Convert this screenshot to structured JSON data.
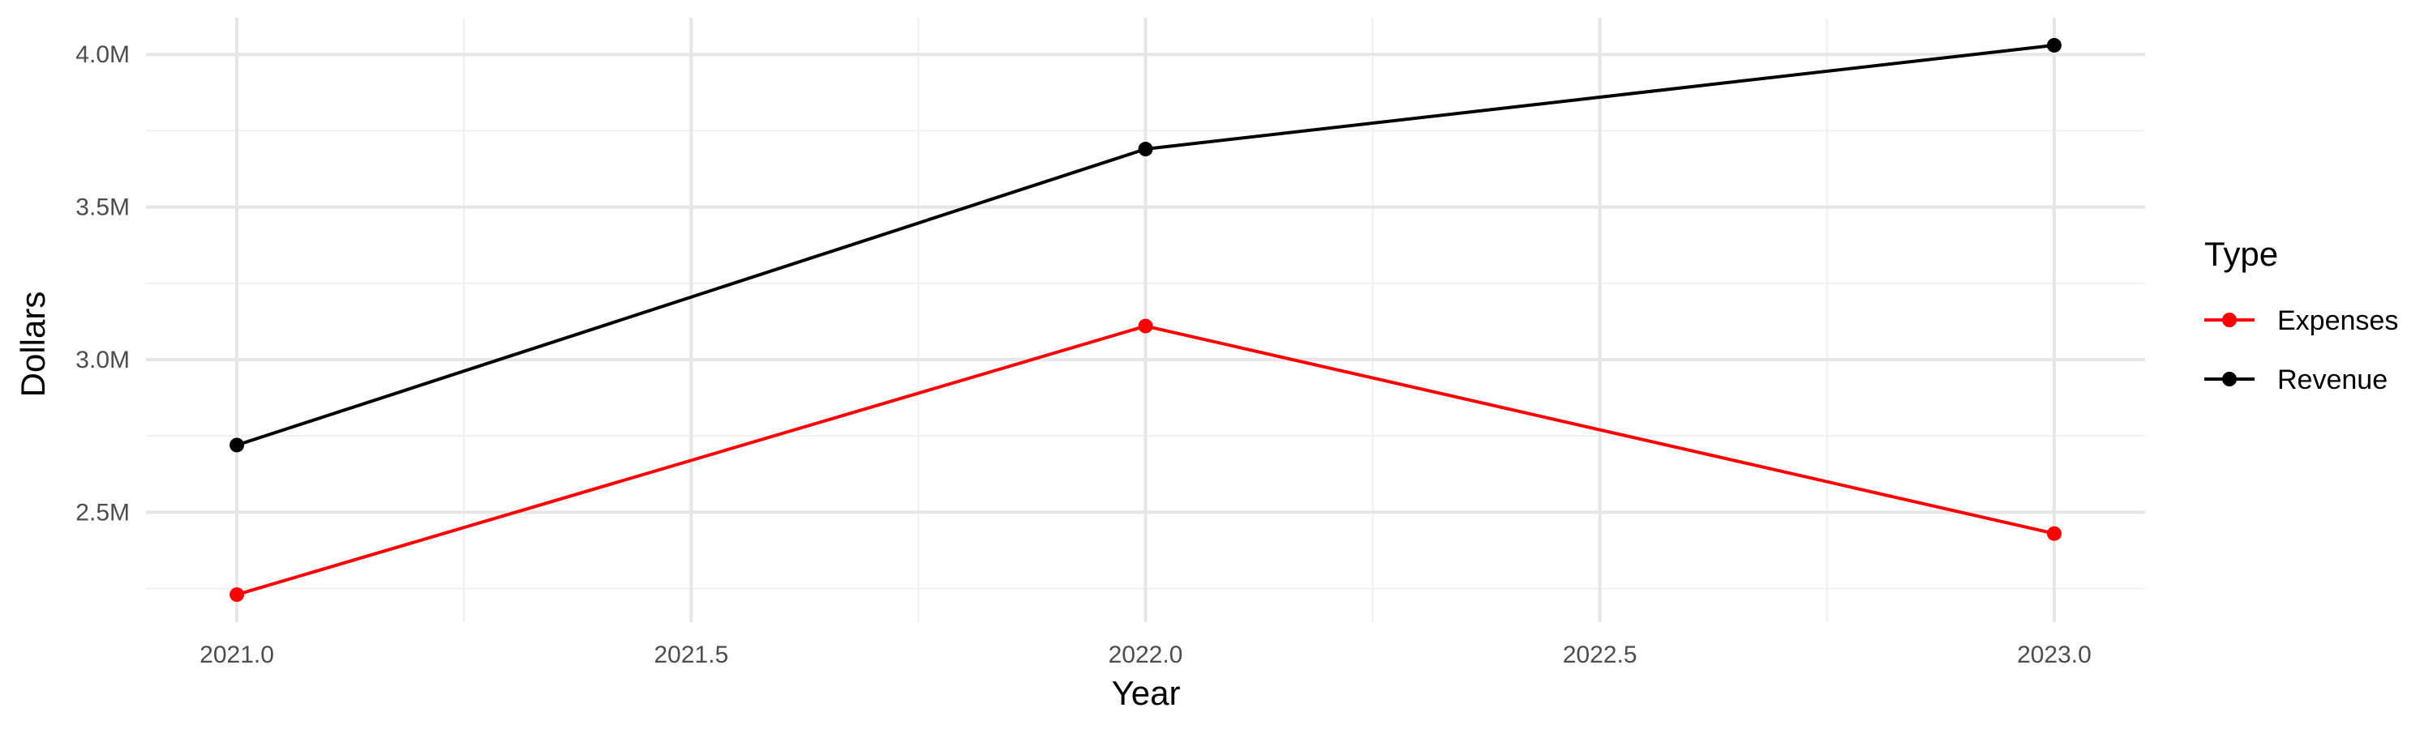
{
  "chart_data": {
    "type": "line",
    "title": "",
    "xlabel": "Year",
    "ylabel": "Dollars",
    "x": [
      2021,
      2022,
      2023
    ],
    "xlim": [
      2020.9,
      2023.1
    ],
    "ylim": [
      2.14,
      4.12
    ],
    "x_ticks": [
      2021.0,
      2021.5,
      2022.0,
      2022.5,
      2023.0
    ],
    "x_tick_labels": [
      "2021.0",
      "2021.5",
      "2022.0",
      "2022.5",
      "2023.0"
    ],
    "y_ticks": [
      2.5,
      3.0,
      3.5,
      4.0
    ],
    "y_tick_labels": [
      "2.5M",
      "3.0M",
      "3.5M",
      "4.0M"
    ],
    "y_unit": "M",
    "grid": true,
    "legend": {
      "title": "Type",
      "position": "right"
    },
    "series": [
      {
        "name": "Expenses",
        "color": "#ff0000",
        "values": [
          2.23,
          3.11,
          2.43
        ]
      },
      {
        "name": "Revenue",
        "color": "#000000",
        "values": [
          2.72,
          3.69,
          4.03
        ]
      }
    ]
  }
}
